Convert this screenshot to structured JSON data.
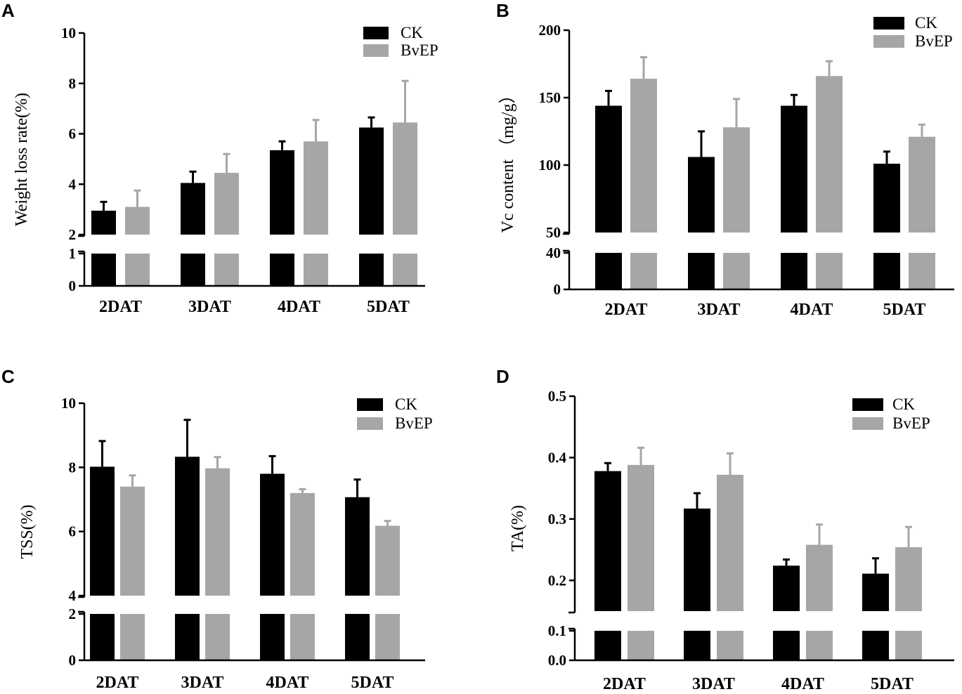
{
  "chart_data": [
    {
      "panel": "A",
      "type": "bar",
      "title": "",
      "xlabel": "",
      "ylabel": "Weight loss rate(%)",
      "categories": [
        "2DAT",
        "3DAT",
        "4DAT",
        "5DAT"
      ],
      "series": [
        {
          "name": "CK",
          "color": "#000000",
          "values": [
            2.95,
            4.05,
            5.35,
            6.25
          ],
          "errors": [
            0.35,
            0.45,
            0.35,
            0.4
          ]
        },
        {
          "name": "BvEP",
          "color": "#a6a6a6",
          "values": [
            3.1,
            4.45,
            5.7,
            6.45
          ],
          "errors": [
            0.65,
            0.75,
            0.85,
            1.65
          ]
        }
      ],
      "axis_break": {
        "lower_ylim": [
          0,
          1
        ],
        "upper_ylim": [
          2,
          10
        ]
      },
      "lower_ticks": [
        "0",
        "1"
      ],
      "upper_ticks": [
        "2",
        "4",
        "6",
        "8",
        "10"
      ],
      "legend_position": "top-right"
    },
    {
      "panel": "B",
      "type": "bar",
      "title": "",
      "xlabel": "",
      "ylabel": "Vc content （mg/g）",
      "categories": [
        "2DAT",
        "3DAT",
        "4DAT",
        "5DAT"
      ],
      "series": [
        {
          "name": "CK",
          "color": "#000000",
          "values": [
            144,
            106,
            144,
            101
          ],
          "errors": [
            11,
            19,
            8,
            9
          ]
        },
        {
          "name": "BvEP",
          "color": "#a6a6a6",
          "values": [
            164,
            128,
            166,
            121
          ],
          "errors": [
            16,
            21,
            11,
            9
          ]
        }
      ],
      "axis_break": {
        "lower_ylim": [
          0,
          40
        ],
        "upper_ylim": [
          50,
          200
        ]
      },
      "lower_ticks": [
        "0",
        "40"
      ],
      "upper_ticks": [
        "50",
        "100",
        "150",
        "200"
      ],
      "legend_position": "top-right"
    },
    {
      "panel": "C",
      "type": "bar",
      "title": "",
      "xlabel": "",
      "ylabel": "TSS(%)",
      "categories": [
        "2DAT",
        "3DAT",
        "4DAT",
        "5DAT"
      ],
      "series": [
        {
          "name": "CK",
          "color": "#000000",
          "values": [
            8.02,
            8.33,
            7.8,
            7.07
          ],
          "errors": [
            0.8,
            1.15,
            0.55,
            0.55
          ]
        },
        {
          "name": "BvEP",
          "color": "#a6a6a6",
          "values": [
            7.4,
            7.97,
            7.2,
            6.18
          ],
          "errors": [
            0.35,
            0.35,
            0.12,
            0.15
          ]
        }
      ],
      "axis_break": {
        "lower_ylim": [
          0,
          2
        ],
        "upper_ylim": [
          4,
          10
        ]
      },
      "lower_ticks": [
        "0",
        "2"
      ],
      "upper_ticks": [
        "4",
        "6",
        "8",
        "10"
      ],
      "legend_position": "top-right"
    },
    {
      "panel": "D",
      "type": "bar",
      "title": "",
      "xlabel": "",
      "ylabel": "TA(%)",
      "categories": [
        "2DAT",
        "3DAT",
        "4DAT",
        "5DAT"
      ],
      "series": [
        {
          "name": "CK",
          "color": "#000000",
          "values": [
            0.378,
            0.317,
            0.224,
            0.211
          ],
          "errors": [
            0.013,
            0.025,
            0.01,
            0.025
          ]
        },
        {
          "name": "BvEP",
          "color": "#a6a6a6",
          "values": [
            0.388,
            0.372,
            0.258,
            0.254
          ],
          "errors": [
            0.028,
            0.035,
            0.033,
            0.033
          ]
        }
      ],
      "axis_break": {
        "lower_ylim": [
          0,
          0.1
        ],
        "upper_ylim": [
          0.15,
          0.5
        ]
      },
      "lower_ticks": [
        "0.0",
        "0.1"
      ],
      "upper_ticks": [
        "0.2",
        "0.3",
        "0.4",
        "0.5"
      ],
      "legend_position": "top-right"
    }
  ]
}
